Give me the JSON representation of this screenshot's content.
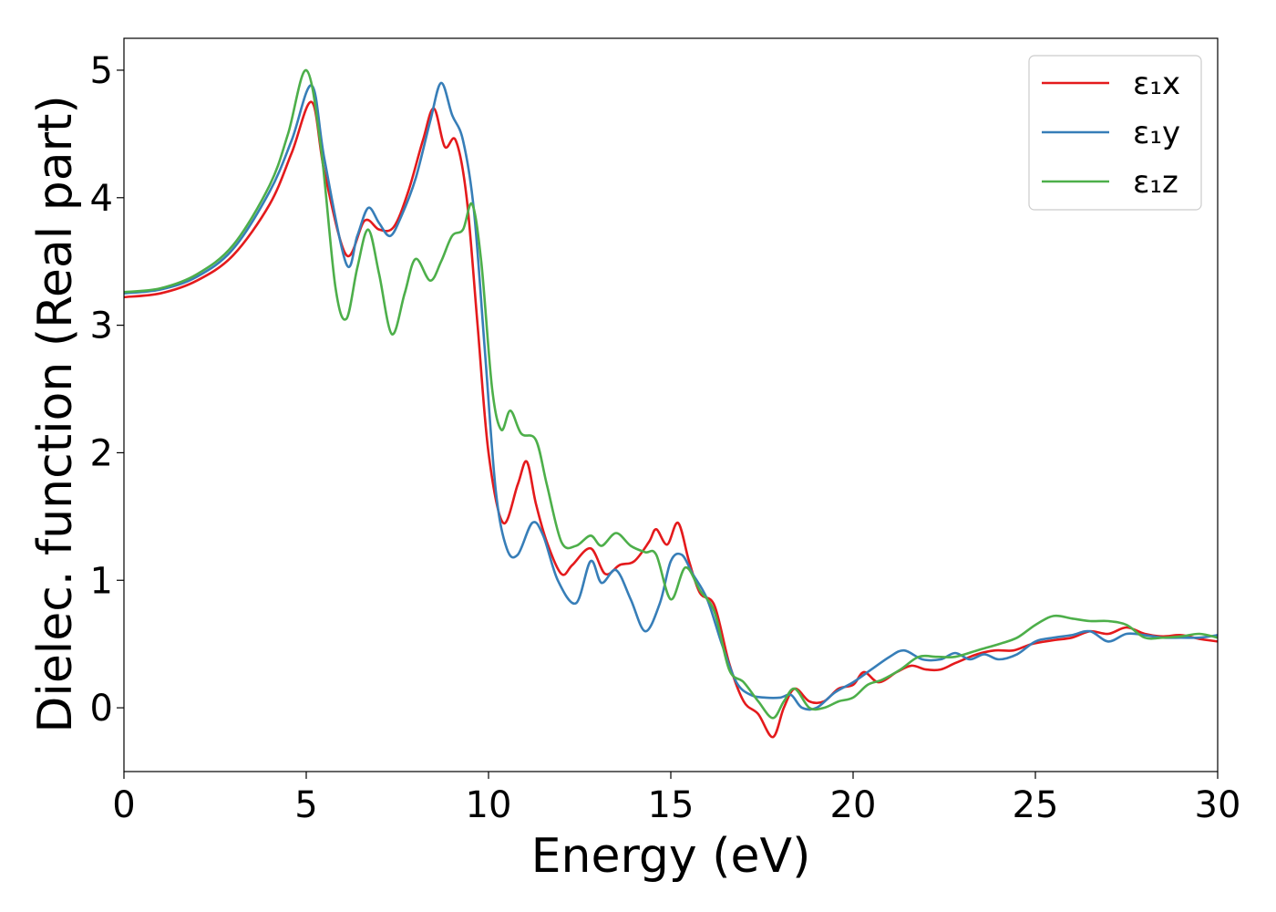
{
  "chart_data": {
    "type": "line",
    "title": "",
    "xlabel": "Energy (eV)",
    "ylabel": "Dielec. function (Real part)",
    "xlim": [
      0,
      30
    ],
    "ylim": [
      -0.5,
      5.25
    ],
    "xticks": [
      "0",
      "5",
      "10",
      "15",
      "20",
      "25",
      "30"
    ],
    "yticks": [
      "0",
      "1",
      "2",
      "3",
      "4",
      "5"
    ],
    "grid": false,
    "legend_position": "top-right",
    "series": [
      {
        "name": "ε₁x",
        "color": "#e41a1c",
        "points": [
          [
            0,
            3.22
          ],
          [
            1,
            3.25
          ],
          [
            2,
            3.35
          ],
          [
            3,
            3.55
          ],
          [
            4,
            3.95
          ],
          [
            4.6,
            4.35
          ],
          [
            5.15,
            4.75
          ],
          [
            5.5,
            4.2
          ],
          [
            6.1,
            3.55
          ],
          [
            6.6,
            3.82
          ],
          [
            7,
            3.75
          ],
          [
            7.4,
            3.77
          ],
          [
            7.8,
            4.05
          ],
          [
            8.2,
            4.45
          ],
          [
            8.5,
            4.7
          ],
          [
            8.8,
            4.4
          ],
          [
            9.1,
            4.45
          ],
          [
            9.4,
            4.0
          ],
          [
            9.7,
            3.0
          ],
          [
            10.0,
            2.0
          ],
          [
            10.4,
            1.45
          ],
          [
            10.8,
            1.75
          ],
          [
            11.05,
            1.93
          ],
          [
            11.3,
            1.6
          ],
          [
            11.6,
            1.3
          ],
          [
            12.0,
            1.05
          ],
          [
            12.3,
            1.12
          ],
          [
            12.8,
            1.25
          ],
          [
            13.2,
            1.05
          ],
          [
            13.6,
            1.12
          ],
          [
            14.0,
            1.15
          ],
          [
            14.4,
            1.3
          ],
          [
            14.6,
            1.4
          ],
          [
            14.9,
            1.28
          ],
          [
            15.2,
            1.45
          ],
          [
            15.5,
            1.15
          ],
          [
            15.8,
            0.9
          ],
          [
            16.2,
            0.8
          ],
          [
            16.6,
            0.35
          ],
          [
            17.0,
            0.05
          ],
          [
            17.4,
            -0.05
          ],
          [
            17.8,
            -0.23
          ],
          [
            18.1,
            0.0
          ],
          [
            18.4,
            0.15
          ],
          [
            18.8,
            0.05
          ],
          [
            19.2,
            0.05
          ],
          [
            19.6,
            0.15
          ],
          [
            20.0,
            0.18
          ],
          [
            20.3,
            0.28
          ],
          [
            20.7,
            0.2
          ],
          [
            21.2,
            0.28
          ],
          [
            21.6,
            0.33
          ],
          [
            22.0,
            0.3
          ],
          [
            22.4,
            0.3
          ],
          [
            22.8,
            0.35
          ],
          [
            23.4,
            0.42
          ],
          [
            23.9,
            0.45
          ],
          [
            24.4,
            0.45
          ],
          [
            24.9,
            0.5
          ],
          [
            25.5,
            0.53
          ],
          [
            26.0,
            0.55
          ],
          [
            26.5,
            0.6
          ],
          [
            27.0,
            0.58
          ],
          [
            27.5,
            0.63
          ],
          [
            28.0,
            0.58
          ],
          [
            28.5,
            0.56
          ],
          [
            29.0,
            0.57
          ],
          [
            29.5,
            0.54
          ],
          [
            30,
            0.52
          ]
        ]
      },
      {
        "name": "ε₁y",
        "color": "#377eb8",
        "points": [
          [
            0,
            3.25
          ],
          [
            1,
            3.28
          ],
          [
            2,
            3.38
          ],
          [
            3,
            3.6
          ],
          [
            4,
            4.05
          ],
          [
            4.6,
            4.45
          ],
          [
            5.15,
            4.88
          ],
          [
            5.5,
            4.3
          ],
          [
            6.1,
            3.48
          ],
          [
            6.4,
            3.7
          ],
          [
            6.7,
            3.92
          ],
          [
            7.0,
            3.8
          ],
          [
            7.3,
            3.7
          ],
          [
            7.6,
            3.85
          ],
          [
            8.0,
            4.15
          ],
          [
            8.4,
            4.6
          ],
          [
            8.7,
            4.9
          ],
          [
            9.0,
            4.65
          ],
          [
            9.3,
            4.45
          ],
          [
            9.6,
            3.9
          ],
          [
            9.9,
            2.8
          ],
          [
            10.2,
            1.7
          ],
          [
            10.5,
            1.25
          ],
          [
            10.8,
            1.2
          ],
          [
            11.2,
            1.45
          ],
          [
            11.5,
            1.35
          ],
          [
            11.9,
            1.0
          ],
          [
            12.4,
            0.82
          ],
          [
            12.8,
            1.15
          ],
          [
            13.1,
            0.98
          ],
          [
            13.5,
            1.08
          ],
          [
            13.9,
            0.85
          ],
          [
            14.3,
            0.6
          ],
          [
            14.7,
            0.82
          ],
          [
            15.0,
            1.15
          ],
          [
            15.3,
            1.2
          ],
          [
            15.6,
            1.05
          ],
          [
            16.0,
            0.85
          ],
          [
            16.4,
            0.5
          ],
          [
            16.8,
            0.2
          ],
          [
            17.2,
            0.1
          ],
          [
            17.6,
            0.08
          ],
          [
            18.0,
            0.08
          ],
          [
            18.3,
            0.1
          ],
          [
            18.6,
            0.0
          ],
          [
            19.0,
            0.0
          ],
          [
            19.5,
            0.12
          ],
          [
            20.0,
            0.2
          ],
          [
            20.5,
            0.3
          ],
          [
            21.0,
            0.4
          ],
          [
            21.4,
            0.45
          ],
          [
            21.9,
            0.38
          ],
          [
            22.4,
            0.38
          ],
          [
            22.8,
            0.43
          ],
          [
            23.2,
            0.38
          ],
          [
            23.6,
            0.42
          ],
          [
            24.0,
            0.38
          ],
          [
            24.5,
            0.42
          ],
          [
            25.0,
            0.52
          ],
          [
            25.5,
            0.55
          ],
          [
            26.0,
            0.57
          ],
          [
            26.5,
            0.6
          ],
          [
            27.0,
            0.52
          ],
          [
            27.5,
            0.58
          ],
          [
            28.0,
            0.57
          ],
          [
            28.5,
            0.55
          ],
          [
            29.0,
            0.55
          ],
          [
            29.5,
            0.55
          ],
          [
            30,
            0.57
          ]
        ]
      },
      {
        "name": "ε₁z",
        "color": "#4daf4a",
        "points": [
          [
            0,
            3.26
          ],
          [
            1,
            3.29
          ],
          [
            2,
            3.4
          ],
          [
            3,
            3.63
          ],
          [
            4,
            4.1
          ],
          [
            4.5,
            4.5
          ],
          [
            5.0,
            5.0
          ],
          [
            5.4,
            4.4
          ],
          [
            5.8,
            3.3
          ],
          [
            6.1,
            3.05
          ],
          [
            6.4,
            3.45
          ],
          [
            6.7,
            3.75
          ],
          [
            7.0,
            3.4
          ],
          [
            7.35,
            2.93
          ],
          [
            7.7,
            3.25
          ],
          [
            8.0,
            3.52
          ],
          [
            8.4,
            3.35
          ],
          [
            8.7,
            3.5
          ],
          [
            9.0,
            3.7
          ],
          [
            9.3,
            3.75
          ],
          [
            9.55,
            3.95
          ],
          [
            9.8,
            3.5
          ],
          [
            10.1,
            2.5
          ],
          [
            10.35,
            2.18
          ],
          [
            10.6,
            2.33
          ],
          [
            10.9,
            2.15
          ],
          [
            11.3,
            2.1
          ],
          [
            11.6,
            1.75
          ],
          [
            12.0,
            1.3
          ],
          [
            12.4,
            1.27
          ],
          [
            12.8,
            1.35
          ],
          [
            13.1,
            1.27
          ],
          [
            13.5,
            1.37
          ],
          [
            13.9,
            1.27
          ],
          [
            14.3,
            1.22
          ],
          [
            14.6,
            1.2
          ],
          [
            15.0,
            0.85
          ],
          [
            15.4,
            1.1
          ],
          [
            15.8,
            0.92
          ],
          [
            16.2,
            0.75
          ],
          [
            16.6,
            0.3
          ],
          [
            17.0,
            0.2
          ],
          [
            17.4,
            0.05
          ],
          [
            17.8,
            -0.08
          ],
          [
            18.1,
            0.05
          ],
          [
            18.4,
            0.15
          ],
          [
            18.8,
            0.0
          ],
          [
            19.2,
            0.0
          ],
          [
            19.6,
            0.05
          ],
          [
            20.0,
            0.08
          ],
          [
            20.4,
            0.18
          ],
          [
            20.8,
            0.22
          ],
          [
            21.3,
            0.3
          ],
          [
            21.8,
            0.4
          ],
          [
            22.3,
            0.4
          ],
          [
            22.8,
            0.4
          ],
          [
            23.4,
            0.45
          ],
          [
            24.0,
            0.5
          ],
          [
            24.5,
            0.55
          ],
          [
            25.0,
            0.65
          ],
          [
            25.5,
            0.72
          ],
          [
            26.0,
            0.7
          ],
          [
            26.5,
            0.68
          ],
          [
            27.0,
            0.68
          ],
          [
            27.5,
            0.65
          ],
          [
            28.0,
            0.55
          ],
          [
            28.5,
            0.55
          ],
          [
            29.0,
            0.56
          ],
          [
            29.5,
            0.58
          ],
          [
            30,
            0.55
          ]
        ]
      }
    ]
  }
}
